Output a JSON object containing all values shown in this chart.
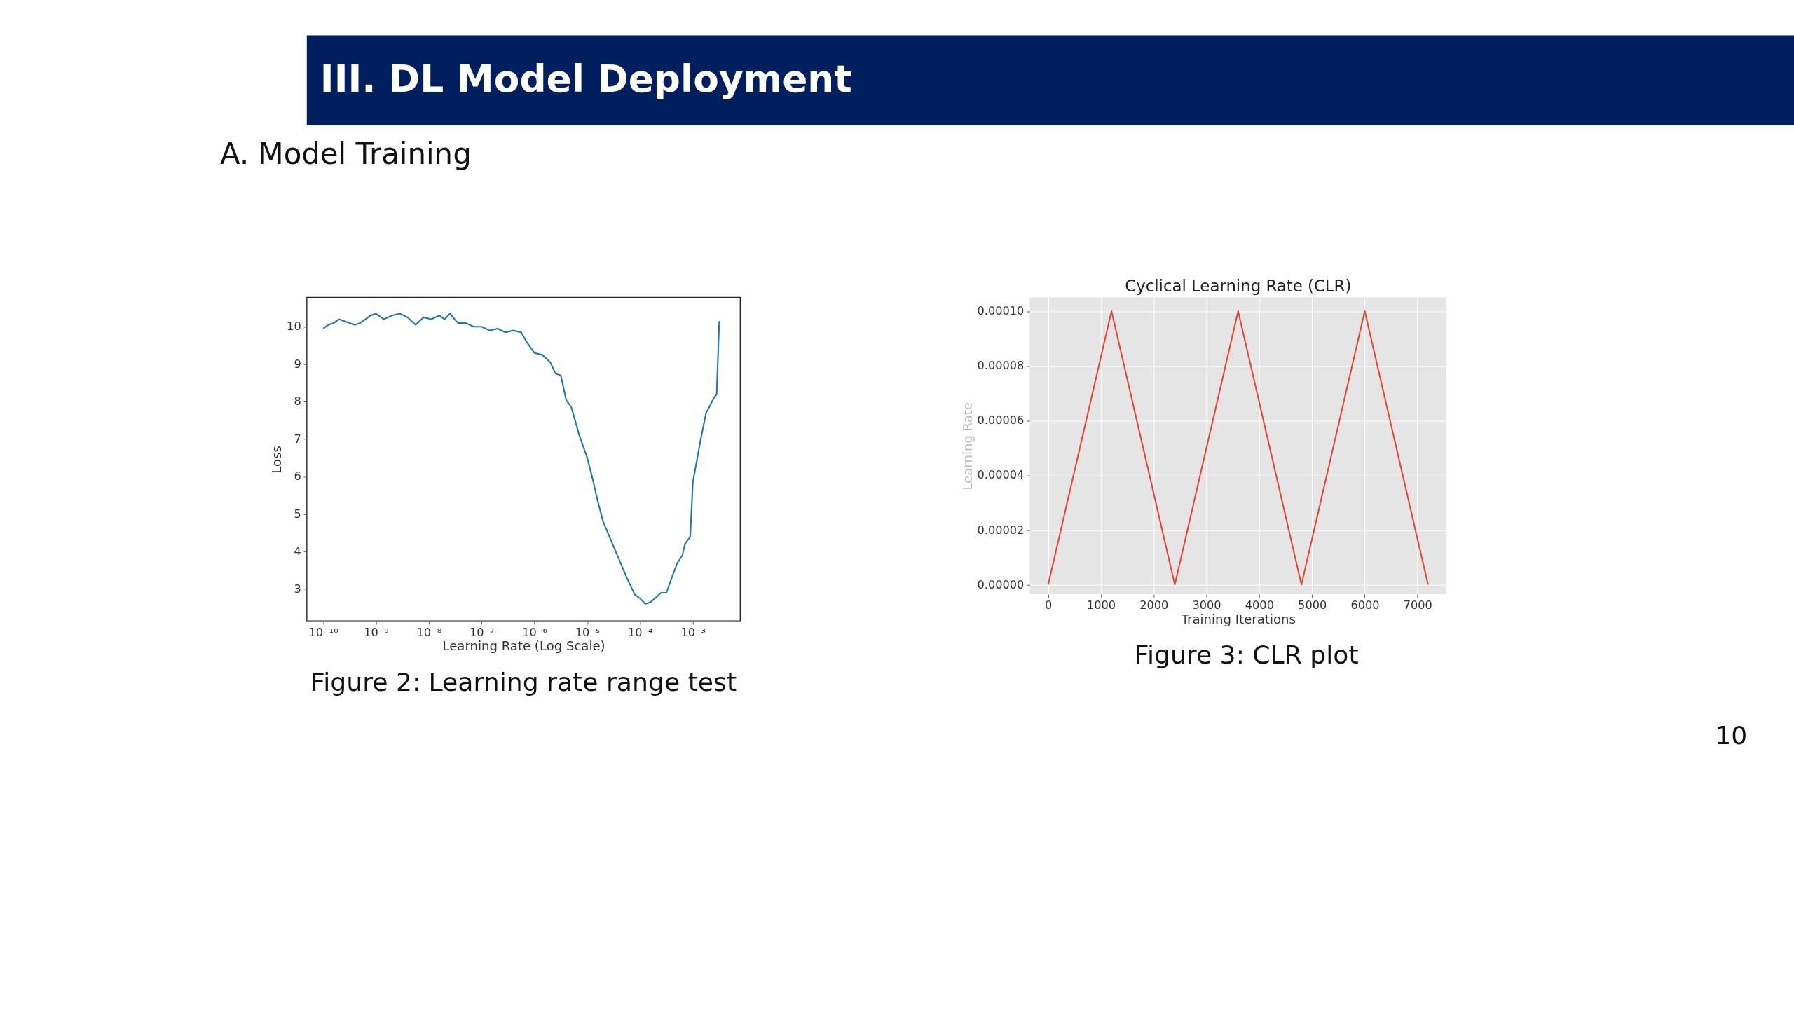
{
  "chart_data": [
    {
      "type": "line",
      "xlabel": "Learning Rate (Log Scale)",
      "ylabel": "Loss",
      "log": "x",
      "grid": false,
      "xlim": [
        4.9e-11,
        0.0079
      ],
      "ylim": [
        2.15,
        10.78
      ],
      "xticks": [
        {
          "value": 1e-10,
          "label": "10⁻¹⁰"
        },
        {
          "value": 1e-09,
          "label": "10⁻⁹"
        },
        {
          "value": 1e-08,
          "label": "10⁻⁸"
        },
        {
          "value": 1e-07,
          "label": "10⁻⁷"
        },
        {
          "value": 1e-06,
          "label": "10⁻⁶"
        },
        {
          "value": 1e-05,
          "label": "10⁻⁵"
        },
        {
          "value": 0.0001,
          "label": "10⁻⁴"
        },
        {
          "value": 0.001,
          "label": "10⁻³"
        }
      ],
      "yticks": [
        3,
        4,
        5,
        6,
        7,
        8,
        9,
        10
      ],
      "x": [
        1e-10,
        1.26e-10,
        1.58e-10,
        2e-10,
        2.51e-10,
        3.16e-10,
        3.98e-10,
        5.01e-10,
        6.31e-10,
        7.94e-10,
        1e-09,
        1.41e-09,
        2e-09,
        2.82e-09,
        3.98e-09,
        5.62e-09,
        7.94e-09,
        1.12e-08,
        1.58e-08,
        2e-08,
        2.51e-08,
        3.55e-08,
        5.01e-08,
        7.08e-08,
        1e-07,
        1.41e-07,
        2e-07,
        2.82e-07,
        3.98e-07,
        5.62e-07,
        7.08e-07,
        1e-06,
        1.41e-06,
        2e-06,
        2.51e-06,
        3.16e-06,
        3.98e-06,
        5.01e-06,
        7.08e-06,
        1e-05,
        1.26e-05,
        1.58e-05,
        2e-05,
        2.82e-05,
        3.98e-05,
        5.62e-05,
        7.94e-05,
        0.0001,
        0.000126,
        0.000158,
        0.000251,
        0.000316,
        0.000398,
        0.000501,
        0.000631,
        0.000708,
        0.000891,
        0.001,
        0.00141,
        0.00178,
        0.00251,
        0.00282,
        0.00316
      ],
      "series": [
        {
          "color": "#1f77b4",
          "values": [
            9.95,
            10.05,
            10.1,
            10.2,
            10.15,
            10.1,
            10.05,
            10.1,
            10.2,
            10.3,
            10.35,
            10.2,
            10.3,
            10.35,
            10.25,
            10.05,
            10.25,
            10.2,
            10.3,
            10.2,
            10.35,
            10.1,
            10.1,
            10.0,
            10.0,
            9.9,
            9.95,
            9.85,
            9.9,
            9.85,
            9.6,
            9.3,
            9.25,
            9.05,
            8.75,
            8.7,
            8.05,
            7.85,
            7.1,
            6.5,
            5.95,
            5.35,
            4.8,
            4.3,
            3.8,
            3.3,
            2.85,
            2.75,
            2.6,
            2.65,
            2.9,
            2.9,
            3.3,
            3.68,
            3.9,
            4.2,
            4.4,
            5.85,
            7.0,
            7.7,
            8.1,
            8.2,
            10.15
          ]
        }
      ],
      "annotations": [
        "Figure 2: Learning rate range test",
        "III. DL Model Deployment",
        "A. Model Training"
      ]
    },
    {
      "type": "line",
      "title": "Cyclical Learning Rate (CLR)",
      "xlabel": "Training Iterations",
      "ylabel": "Learning Rate",
      "grid": true,
      "xlim": [
        -350,
        7550
      ],
      "ylim": [
        -3.5e-06,
        0.000105
      ],
      "xticks": [
        0,
        1000,
        2000,
        3000,
        4000,
        5000,
        6000,
        7000
      ],
      "yticks": [
        {
          "value": 0,
          "label": "0.00000"
        },
        {
          "value": 2e-05,
          "label": "0.00002"
        },
        {
          "value": 4e-05,
          "label": "0.00004"
        },
        {
          "value": 6e-05,
          "label": "0.00006"
        },
        {
          "value": 8e-05,
          "label": "0.00008"
        },
        {
          "value": 0.0001,
          "label": "0.00010"
        }
      ],
      "x": [
        0,
        1200,
        2400,
        3600,
        4800,
        6000,
        7200
      ],
      "series": [
        {
          "color": "#e24a33",
          "values": [
            0,
            0.0001,
            0,
            0.0001,
            0,
            0.0001,
            0
          ]
        }
      ],
      "annotations": [
        "Figure 3: CLR plot",
        "10"
      ]
    }
  ]
}
